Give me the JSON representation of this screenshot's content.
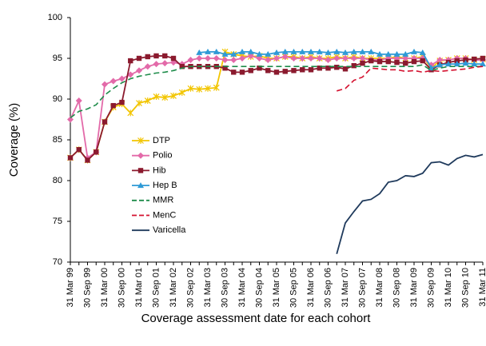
{
  "chart_data": {
    "type": "line",
    "x_label": "Coverage assessment date for each cohort",
    "y_label": "Coverage (%)",
    "categories": [
      "31 Mar 99",
      null,
      "30 Sep 99",
      null,
      "31 Mar 00",
      null,
      "30 Sep 00",
      null,
      "31 Mar 01",
      null,
      "30 Sep 01",
      null,
      "31 Mar 02",
      null,
      "30 Sep 02",
      null,
      "31 Mar 03",
      null,
      "30 Sep 03",
      null,
      "31 Mar 04",
      null,
      "30 Sep 04",
      null,
      "31 Mar 05",
      null,
      "30 Sep 05",
      null,
      "31 Mar 06",
      null,
      "30 Sep 06",
      null,
      "31 Mar 07",
      null,
      "30 Sep 07",
      null,
      "31 Mar 08",
      null,
      "30 Sep 08",
      null,
      "31 Mar 09",
      null,
      "30 Sep 09",
      null,
      "31 Mar 10",
      null,
      "30 Sep 10",
      null,
      "31 Mar 11"
    ],
    "ylim": [
      70,
      100
    ],
    "yticks": [
      70,
      75,
      80,
      85,
      90,
      95,
      100
    ],
    "legend": "left",
    "series": [
      {
        "name": "DTP",
        "color": "#f2c500",
        "marker": "star",
        "dashed": false,
        "values": [
          82.8,
          83.8,
          82.5,
          83.5,
          87.2,
          89.0,
          89.4,
          88.3,
          89.5,
          89.8,
          90.3,
          90.2,
          90.4,
          90.8,
          91.3,
          91.2,
          91.3,
          91.4,
          95.8,
          95.5,
          95.3,
          95.2,
          95.3,
          95.0,
          95.0,
          95.2,
          95.2,
          95.0,
          95.2,
          95.0,
          95.0,
          95.2,
          95.0,
          95.2,
          95.0,
          95.0,
          95.0,
          95.0,
          95.2,
          95.0,
          95.0,
          95.2,
          93.8,
          94.7,
          94.8,
          95.0,
          95.0,
          94.8,
          94.9
        ]
      },
      {
        "name": "Polio",
        "color": "#e36aa9",
        "marker": "diamond",
        "dashed": false,
        "values": [
          87.5,
          89.8,
          82.8,
          83.5,
          91.8,
          92.2,
          92.5,
          93.0,
          93.5,
          94.0,
          94.3,
          94.4,
          94.5,
          94.3,
          94.8,
          95.0,
          95.0,
          95.0,
          94.8,
          94.8,
          95.0,
          95.3,
          95.0,
          94.8,
          95.0,
          95.2,
          95.0,
          95.0,
          95.0,
          95.0,
          94.8,
          95.0,
          95.0,
          95.0,
          95.0,
          94.8,
          94.8,
          95.0,
          95.0,
          95.0,
          95.0,
          95.0,
          94.2,
          94.8,
          94.8,
          95.0,
          95.0,
          94.8,
          94.8
        ]
      },
      {
        "name": "Hib",
        "color": "#8b1a2e",
        "marker": "square",
        "dashed": false,
        "values": [
          82.8,
          83.8,
          82.5,
          83.5,
          87.2,
          89.2,
          89.6,
          94.7,
          95.0,
          95.2,
          95.3,
          95.3,
          95.0,
          94.0,
          94.0,
          94.0,
          94.0,
          94.0,
          93.8,
          93.3,
          93.3,
          93.5,
          93.8,
          93.5,
          93.3,
          93.4,
          93.5,
          93.6,
          93.6,
          93.8,
          93.8,
          93.9,
          93.7,
          94.1,
          94.4,
          94.7,
          94.6,
          94.6,
          94.5,
          94.4,
          94.6,
          94.7,
          93.6,
          94.2,
          94.5,
          94.7,
          94.8,
          94.9,
          95.0
        ]
      },
      {
        "name": "Hep B",
        "color": "#2f9ad6",
        "marker": "triangle",
        "dashed": false,
        "values": [
          null,
          null,
          null,
          null,
          null,
          null,
          null,
          null,
          null,
          null,
          null,
          null,
          null,
          null,
          null,
          95.7,
          95.8,
          95.8,
          95.5,
          95.5,
          95.8,
          95.8,
          95.5,
          95.5,
          95.7,
          95.8,
          95.8,
          95.8,
          95.8,
          95.8,
          95.7,
          95.8,
          95.7,
          95.8,
          95.8,
          95.8,
          95.5,
          95.5,
          95.5,
          95.5,
          95.8,
          95.7,
          93.8,
          94.2,
          94.3,
          94.3,
          94.4,
          94.3,
          94.3
        ]
      },
      {
        "name": "MMR",
        "color": "#1e8c4a",
        "marker": "none",
        "dashed": true,
        "values": [
          87.7,
          88.5,
          88.8,
          89.3,
          90.5,
          91.3,
          92.0,
          92.5,
          92.8,
          93.0,
          93.2,
          93.3,
          93.5,
          93.8,
          94.0,
          94.0,
          94.0,
          94.0,
          94.0,
          94.0,
          94.0,
          94.0,
          94.0,
          94.0,
          94.0,
          94.0,
          94.0,
          94.0,
          94.0,
          94.0,
          94.0,
          94.0,
          94.0,
          94.0,
          94.0,
          94.0,
          94.0,
          94.0,
          94.0,
          94.0,
          94.0,
          94.2,
          93.5,
          93.8,
          94.0,
          94.0,
          94.0,
          94.0,
          94.0
        ]
      },
      {
        "name": "MenC",
        "color": "#d4102e",
        "marker": "none",
        "dashed": true,
        "values": [
          null,
          null,
          null,
          null,
          null,
          null,
          null,
          null,
          null,
          null,
          null,
          null,
          null,
          null,
          null,
          null,
          null,
          null,
          null,
          null,
          null,
          null,
          null,
          null,
          null,
          null,
          null,
          null,
          null,
          null,
          null,
          91.0,
          91.3,
          92.3,
          92.7,
          93.8,
          93.7,
          93.6,
          93.6,
          93.4,
          93.5,
          93.3,
          93.5,
          93.4,
          93.5,
          93.6,
          93.7,
          93.9,
          94.0
        ]
      },
      {
        "name": "Varicella",
        "color": "#1f3a5c",
        "marker": "none",
        "dashed": false,
        "values": [
          null,
          null,
          null,
          null,
          null,
          null,
          null,
          null,
          null,
          null,
          null,
          null,
          null,
          null,
          null,
          null,
          null,
          null,
          null,
          null,
          null,
          null,
          null,
          null,
          null,
          null,
          null,
          null,
          null,
          null,
          null,
          71.0,
          74.8,
          76.2,
          77.5,
          77.7,
          78.4,
          79.8,
          80.0,
          80.6,
          80.5,
          80.9,
          82.2,
          82.3,
          81.9,
          82.7,
          83.1,
          82.9,
          83.2
        ]
      }
    ]
  }
}
